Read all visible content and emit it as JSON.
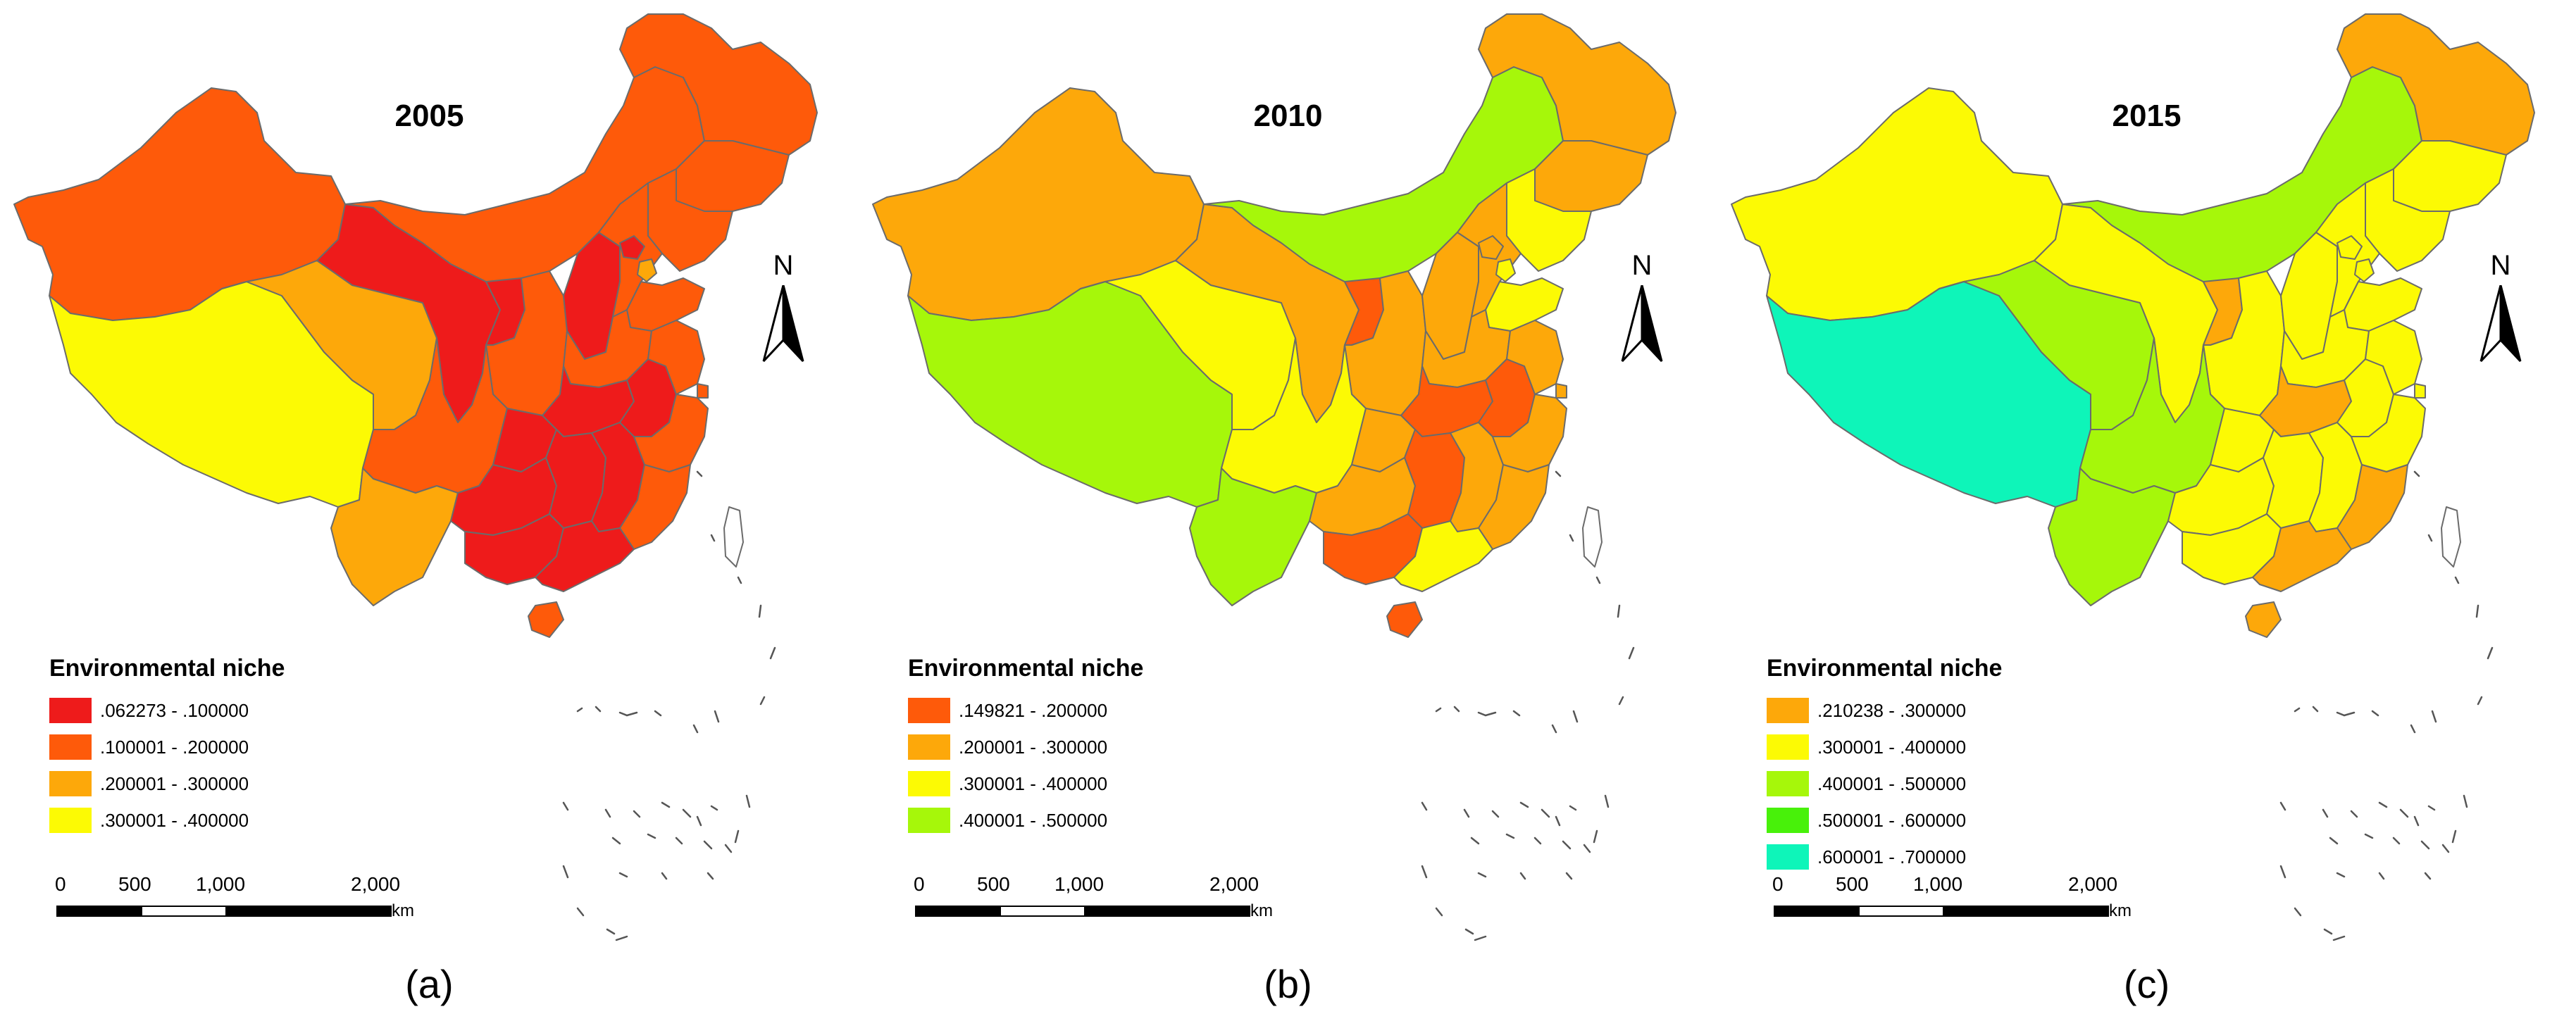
{
  "figure": "Environmental niche maps of China",
  "legend_title": "Environmental niche",
  "scale": {
    "ticks": [
      "0",
      "500",
      "1,000",
      "2,000"
    ],
    "unit": "km"
  },
  "north_label": "N",
  "colors": {
    "red": "#ee1b1b",
    "red_orange": "#fe5a0a",
    "orange": "#fda80a",
    "yellow": "#fcfa04",
    "lime": "#a6f70a",
    "green": "#48f10a",
    "cyan": "#0ef5b9",
    "white": "#ffffff",
    "outline": "#6b6b6b"
  },
  "panels": [
    {
      "year": "2005",
      "label": "(a)",
      "legend": [
        {
          "range": ".062273 - .100000",
          "color": "#ee1b1b"
        },
        {
          "range": ".100001 - .200000",
          "color": "#fe5a0a"
        },
        {
          "range": ".200001 - .300000",
          "color": "#fda80a"
        },
        {
          "range": ".300001 - .400000",
          "color": "#fcfa04"
        }
      ],
      "regions": {
        "xinjiang": "#fe5a0a",
        "tibet": "#fcfa04",
        "qinghai": "#fda80a",
        "gansu": "#ee1b1b",
        "inner_mongolia": "#fe5a0a",
        "heilongjiang": "#fe5a0a",
        "jilin": "#fe5a0a",
        "liaoning": "#fe5a0a",
        "ningxia": "#ee1b1b",
        "shaanxi": "#fe5a0a",
        "shanxi": "#ee1b1b",
        "hebei": "#fe5a0a",
        "beijing": "#ee1b1b",
        "tianjin": "#fda80a",
        "shandong": "#fe5a0a",
        "henan": "#fe5a0a",
        "sichuan": "#fe5a0a",
        "chongqing": "#ee1b1b",
        "yunnan": "#fda80a",
        "guizhou": "#ee1b1b",
        "hubei": "#ee1b1b",
        "hunan": "#ee1b1b",
        "jiangxi": "#ee1b1b",
        "anhui": "#ee1b1b",
        "jiangsu": "#fe5a0a",
        "zhejiang": "#fe5a0a",
        "shanghai": "#fe5a0a",
        "fujian": "#fe5a0a",
        "guangxi": "#ee1b1b",
        "guangdong": "#ee1b1b",
        "hainan": "#fe5a0a",
        "taiwan": "#ffffff"
      }
    },
    {
      "year": "2010",
      "label": "(b)",
      "legend": [
        {
          "range": ".149821 - .200000",
          "color": "#fe5a0a"
        },
        {
          "range": ".200001 - .300000",
          "color": "#fda80a"
        },
        {
          "range": ".300001 - .400000",
          "color": "#fcfa04"
        },
        {
          "range": ".400001 - .500000",
          "color": "#a6f70a"
        }
      ],
      "regions": {
        "xinjiang": "#fda80a",
        "tibet": "#a6f70a",
        "qinghai": "#fcfa04",
        "gansu": "#fda80a",
        "inner_mongolia": "#a6f70a",
        "heilongjiang": "#fda80a",
        "jilin": "#fda80a",
        "liaoning": "#fcfa04",
        "ningxia": "#fe5a0a",
        "shaanxi": "#fda80a",
        "shanxi": "#fda80a",
        "hebei": "#fda80a",
        "beijing": "#fda80a",
        "tianjin": "#fcfa04",
        "shandong": "#fcfa04",
        "henan": "#fda80a",
        "sichuan": "#fcfa04",
        "chongqing": "#fda80a",
        "yunnan": "#a6f70a",
        "guizhou": "#fda80a",
        "hubei": "#fe5a0a",
        "hunan": "#fe5a0a",
        "jiangxi": "#fda80a",
        "anhui": "#fe5a0a",
        "jiangsu": "#fda80a",
        "zhejiang": "#fda80a",
        "shanghai": "#fda80a",
        "fujian": "#fda80a",
        "guangxi": "#fe5a0a",
        "guangdong": "#fcfa04",
        "hainan": "#fe5a0a",
        "taiwan": "#ffffff"
      }
    },
    {
      "year": "2015",
      "label": "(c)",
      "legend": [
        {
          "range": ".210238 - .300000",
          "color": "#fda80a"
        },
        {
          "range": ".300001 - .400000",
          "color": "#fcfa04"
        },
        {
          "range": ".400001 - .500000",
          "color": "#a6f70a"
        },
        {
          "range": ".500001 - .600000",
          "color": "#48f10a"
        },
        {
          "range": ".600001 - .700000",
          "color": "#0ef5b9"
        }
      ],
      "regions": {
        "xinjiang": "#fcfa04",
        "tibet": "#0ef5b9",
        "qinghai": "#a6f70a",
        "gansu": "#fcfa04",
        "inner_mongolia": "#a6f70a",
        "heilongjiang": "#fda80a",
        "jilin": "#fcfa04",
        "liaoning": "#fcfa04",
        "ningxia": "#fda80a",
        "shaanxi": "#fcfa04",
        "shanxi": "#fcfa04",
        "hebei": "#fcfa04",
        "beijing": "#fcfa04",
        "tianjin": "#fcfa04",
        "shandong": "#fcfa04",
        "henan": "#fcfa04",
        "sichuan": "#a6f70a",
        "chongqing": "#fcfa04",
        "yunnan": "#a6f70a",
        "guizhou": "#fcfa04",
        "hubei": "#fda80a",
        "hunan": "#fcfa04",
        "jiangxi": "#fcfa04",
        "anhui": "#fcfa04",
        "jiangsu": "#fcfa04",
        "zhejiang": "#fcfa04",
        "shanghai": "#fcfa04",
        "fujian": "#fda80a",
        "guangxi": "#fcfa04",
        "guangdong": "#fda80a",
        "hainan": "#fda80a",
        "taiwan": "#ffffff"
      }
    }
  ]
}
